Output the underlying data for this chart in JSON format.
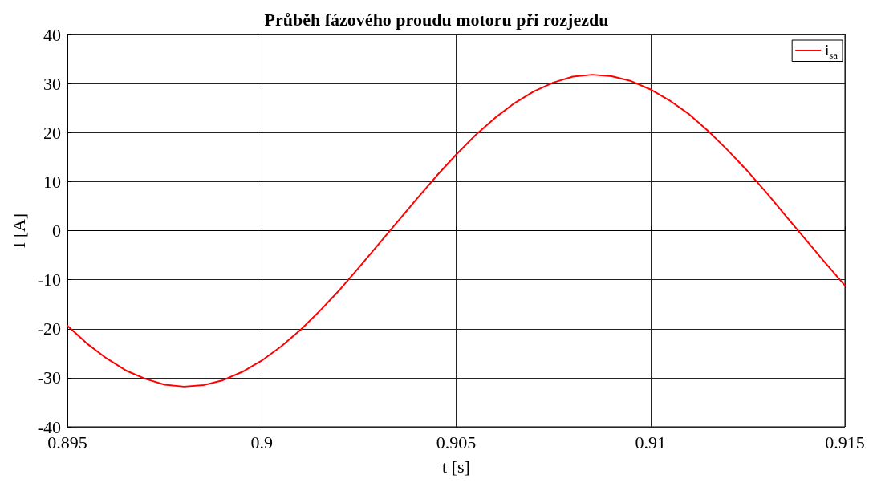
{
  "chart_data": {
    "type": "line",
    "title": "Průběh fázového proudu motoru při rozjezdu",
    "xlabel": "t [s]",
    "ylabel": "I [A]",
    "x": [
      0.895,
      0.8955,
      0.896,
      0.8965,
      0.897,
      0.8975,
      0.898,
      0.8985,
      0.899,
      0.8995,
      0.9,
      0.9005,
      0.901,
      0.9015,
      0.902,
      0.9025,
      0.903,
      0.9035,
      0.904,
      0.9045,
      0.905,
      0.9055,
      0.906,
      0.9065,
      0.907,
      0.9075,
      0.908,
      0.9085,
      0.909,
      0.9095,
      0.91,
      0.9105,
      0.911,
      0.9115,
      0.912,
      0.9125,
      0.913,
      0.9135,
      0.914,
      0.9145,
      0.915
    ],
    "series": [
      {
        "name": "i$_{sa}$",
        "color": "#ff0000",
        "values": [
          -19.4,
          -23.0,
          -26.0,
          -28.5,
          -30.2,
          -31.4,
          -31.8,
          -31.5,
          -30.5,
          -28.8,
          -26.5,
          -23.6,
          -20.2,
          -16.3,
          -12.1,
          -7.5,
          -2.8,
          1.9,
          6.6,
          11.2,
          15.5,
          19.5,
          23.0,
          26.0,
          28.4,
          30.2,
          31.4,
          31.8,
          31.5,
          30.5,
          28.8,
          26.5,
          23.7,
          20.2,
          16.3,
          12.1,
          7.6,
          2.8,
          -1.9,
          -6.6,
          -11.2
        ]
      }
    ],
    "xlim": [
      0.895,
      0.915
    ],
    "xticks": [
      0.895,
      0.9,
      0.905,
      0.91,
      0.915
    ],
    "ylim": [
      -40,
      40
    ],
    "yticks": [
      -40,
      -30,
      -20,
      -10,
      0,
      10,
      20,
      30,
      40
    ],
    "grid": true,
    "legend": "top right",
    "marker": "none",
    "line_style": "solid"
  }
}
